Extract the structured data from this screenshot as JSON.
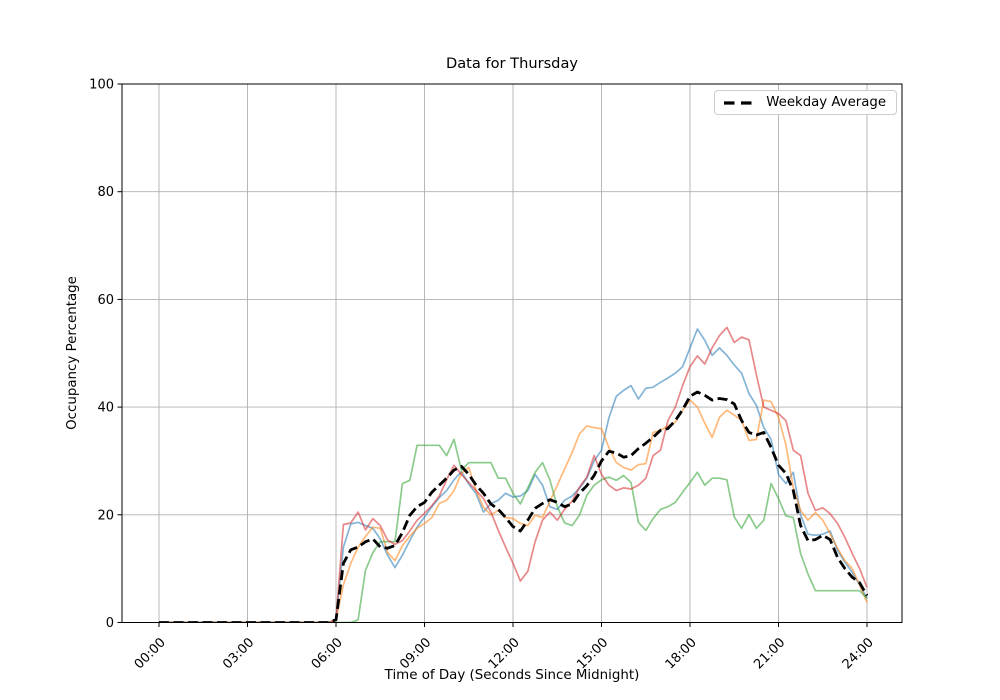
{
  "figure": {
    "background": "#ffffff"
  },
  "chart_data": {
    "type": "line",
    "title": "Data for Thursday",
    "xlabel": "Time of Day (Seconds Since Midnight)",
    "ylabel": "Occupancy Percentage",
    "ylim": [
      0,
      100
    ],
    "xlim_hours": [
      -1.25,
      25.2
    ],
    "grid": true,
    "grid_color": "#b0b0b0",
    "axis_color": "#000000",
    "y_ticks": [
      0,
      20,
      40,
      60,
      80,
      100
    ],
    "x_tick_hours": [
      0,
      3,
      6,
      9,
      12,
      15,
      18,
      21,
      24
    ],
    "x_tick_labels": [
      "00:00",
      "03:00",
      "06:00",
      "09:00",
      "12:00",
      "15:00",
      "18:00",
      "21:00",
      "24:00"
    ],
    "x_start_hour": 0,
    "x_step_hours": 0.25,
    "legend": {
      "label": "Weekday Average",
      "position": "upper right"
    },
    "series": [
      {
        "id": "day-line-blue",
        "color": "#1f77b4",
        "alpha": 0.55,
        "style": "solid",
        "width": 1.7,
        "values": [
          0,
          0,
          0,
          0,
          0,
          0,
          0,
          0,
          0,
          0,
          0,
          0,
          0,
          0,
          0,
          0,
          0,
          0,
          0,
          0,
          0,
          0,
          0,
          0,
          0.5,
          14,
          18.3,
          18.6,
          18,
          17.5,
          15.5,
          12.5,
          10.2,
          12.5,
          15.2,
          17.7,
          19.6,
          21.5,
          23.2,
          24.5,
          26.5,
          28,
          25.7,
          23.9,
          20.5,
          22.1,
          22.7,
          24,
          23.3,
          23.5,
          24.5,
          27.5,
          25.5,
          21.5,
          21,
          22.7,
          23.5,
          24.9,
          26.8,
          30,
          32,
          38,
          42,
          43.1,
          44,
          41.5,
          43.5,
          43.7,
          44.6,
          45.4,
          46.3,
          47.5,
          51,
          54.5,
          52.4,
          49.6,
          51,
          49.6,
          47.8,
          46.3,
          42.5,
          40.3,
          36.2,
          34,
          27.5,
          25.8,
          27.9,
          20,
          16.4,
          16.2,
          16.4,
          17,
          13.4,
          11.2,
          9.3,
          7,
          4.5
        ]
      },
      {
        "id": "day-line-orange",
        "color": "#ff7f0e",
        "alpha": 0.55,
        "style": "solid",
        "width": 1.7,
        "values": [
          0,
          0,
          0,
          0,
          0,
          0,
          0,
          0,
          0,
          0,
          0,
          0,
          0,
          0,
          0,
          0,
          0,
          0,
          0,
          0,
          0,
          0,
          0,
          0,
          0.5,
          7,
          11,
          14,
          16,
          17.7,
          17.5,
          13,
          11.5,
          14.3,
          16,
          17.5,
          18.4,
          19.5,
          22.1,
          22.7,
          24.5,
          27.7,
          28.8,
          24.5,
          21.4,
          20,
          20.8,
          19.5,
          19.3,
          18.4,
          18,
          19.9,
          19.5,
          22.5,
          25.5,
          28.5,
          31.5,
          35,
          36.5,
          36.2,
          36,
          32.5,
          29.7,
          28.8,
          28.3,
          29.3,
          29.5,
          35.3,
          35.7,
          36.5,
          37.2,
          39.4,
          41.3,
          40,
          37,
          34.4,
          38.1,
          39.4,
          38.5,
          37.5,
          33.8,
          34,
          41.3,
          41,
          38.1,
          33,
          25,
          20.8,
          19,
          20.4,
          19,
          16.5,
          13.8,
          11.5,
          10,
          7,
          3.7
        ]
      },
      {
        "id": "day-line-green",
        "color": "#2ca02c",
        "alpha": 0.55,
        "style": "solid",
        "width": 1.7,
        "values": [
          0,
          0,
          0,
          0,
          0,
          0,
          0,
          0,
          0,
          0,
          0,
          0,
          0,
          0,
          0,
          0,
          0,
          0,
          0,
          0,
          0,
          0,
          0,
          0,
          0,
          0,
          0,
          0.5,
          9.7,
          13,
          15,
          15,
          15,
          25.8,
          26.4,
          32.9,
          32.9,
          32.9,
          32.9,
          31,
          34,
          28.3,
          29.7,
          29.7,
          29.7,
          29.7,
          26.8,
          26.8,
          24,
          22,
          25,
          27.9,
          29.7,
          26.5,
          21.5,
          18.5,
          18,
          19.9,
          23.6,
          25.5,
          26.5,
          27,
          26.4,
          27.3,
          26,
          18.6,
          17.1,
          19.3,
          21,
          21.5,
          22.3,
          24.2,
          26,
          27.9,
          25.5,
          26.8,
          26.8,
          26.5,
          19.6,
          17.5,
          20,
          17.5,
          19,
          25.8,
          23,
          19.8,
          19.5,
          12.8,
          9,
          5.9,
          5.9,
          5.9,
          5.9,
          5.9,
          5.9,
          5.9,
          4.5
        ]
      },
      {
        "id": "day-line-red",
        "color": "#d62728",
        "alpha": 0.55,
        "style": "solid",
        "width": 1.7,
        "values": [
          0,
          0,
          0,
          0,
          0,
          0,
          0,
          0,
          0,
          0,
          0,
          0,
          0,
          0,
          0,
          0,
          0,
          0,
          0,
          0,
          0,
          0,
          0,
          0,
          0.5,
          18.2,
          18.5,
          20.5,
          17.2,
          19.3,
          18,
          15.3,
          14.5,
          15.2,
          17,
          19,
          20.3,
          21.7,
          23.5,
          26.5,
          29.2,
          27.5,
          26,
          24.5,
          23,
          20.5,
          17.1,
          14,
          11,
          7.7,
          9.5,
          15,
          19,
          20.5,
          19,
          21,
          22.5,
          25.1,
          27,
          31,
          27.5,
          25.5,
          24.5,
          25,
          24.8,
          25.5,
          26.8,
          31,
          32,
          37.5,
          40,
          44,
          47.5,
          49.5,
          48,
          51,
          53.3,
          54.8,
          52,
          53,
          52.5,
          46,
          40,
          39.4,
          38.8,
          37.5,
          32,
          31,
          24,
          20.8,
          21.3,
          20.2,
          18.4,
          15.8,
          12.8,
          10,
          6.5
        ]
      },
      {
        "id": "weekday-average",
        "legend_label": "Weekday Average",
        "color": "#000000",
        "alpha": 1,
        "style": "dashed",
        "width": 2.8,
        "values": [
          0,
          0,
          0,
          0,
          0,
          0,
          0,
          0,
          0,
          0,
          0,
          0,
          0,
          0,
          0,
          0,
          0,
          0,
          0,
          0,
          0,
          0,
          0,
          0,
          0.5,
          11,
          13.5,
          14,
          15,
          15.5,
          14,
          13.8,
          14.3,
          16.7,
          19.9,
          21.5,
          22.3,
          24.2,
          25.5,
          26.8,
          28.3,
          29,
          27.5,
          25.5,
          24,
          22,
          21,
          19.5,
          17.8,
          17,
          19,
          21.2,
          22.1,
          22.8,
          22.3,
          21.5,
          22,
          24,
          25.4,
          27.3,
          30,
          31.8,
          31.5,
          30.7,
          31,
          32.3,
          33.3,
          34.4,
          35.7,
          36,
          37.5,
          39.5,
          42,
          42.8,
          42.2,
          41.3,
          41.6,
          41.4,
          40.6,
          37.5,
          35.3,
          34.8,
          35.3,
          32.5,
          29.2,
          27.7,
          24.5,
          18,
          15.2,
          15.4,
          16.2,
          15.4,
          12.1,
          10,
          8.4,
          7.4,
          5
        ]
      }
    ]
  }
}
